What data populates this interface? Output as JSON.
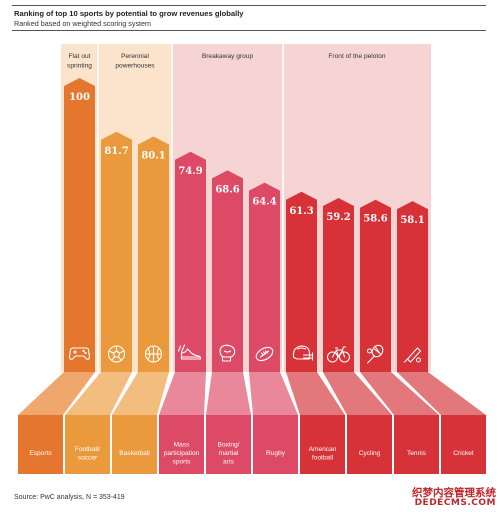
{
  "chart_data": {
    "type": "bar",
    "title": "Ranking of top 10 sports by potential to grow revenues globally",
    "subtitle": "Ranked based on weighted scoring system",
    "source": "PwC analysis, N = 353-419",
    "ylim": [
      0,
      100
    ],
    "groups": [
      {
        "label": "Flat out sprinting",
        "color": "#fbe3cc",
        "start": 0,
        "end": 0
      },
      {
        "label": "Perennial powerhouses",
        "color": "#fbe3cc",
        "start": 1,
        "end": 2
      },
      {
        "label": "Breakaway group",
        "color": "#f7d4d4",
        "start": 3,
        "end": 5
      },
      {
        "label": "Front of the peloton",
        "color": "#f7d4d4",
        "start": 6,
        "end": 9
      }
    ],
    "categories": [
      "Esports",
      "Football/ soccer",
      "Basketball",
      "Mass participation sports",
      "Boxing/ martial arts",
      "Rugby",
      "American football",
      "Cycling",
      "Tennis",
      "Cricket"
    ],
    "values": [
      100,
      81.7,
      80.1,
      74.9,
      68.6,
      64.4,
      61.3,
      59.2,
      58.6,
      58.1
    ],
    "value_labels": [
      "100",
      "81.7",
      "80.1",
      "74.9",
      "68.6",
      "64.4",
      "61.3",
      "59.2",
      "58.6",
      "58.1"
    ],
    "bar_colors": [
      "#e5762d",
      "#ea9a3c",
      "#ea9a3c",
      "#dd4a66",
      "#dd4a66",
      "#dd4a66",
      "#d73238",
      "#d73238",
      "#d73238",
      "#d73238"
    ],
    "base_colors": [
      "#f0a76d",
      "#f3bd7f",
      "#f3bd7f",
      "#e8889a",
      "#e8889a",
      "#e8889a",
      "#e2787c",
      "#e2787c",
      "#e2787c",
      "#e2787c"
    ],
    "icons": [
      "gamepad-icon",
      "soccer-ball-icon",
      "basketball-icon",
      "running-shoe-icon",
      "boxing-glove-icon",
      "rugby-ball-icon",
      "football-helmet-icon",
      "bicycle-icon",
      "tennis-racket-icon",
      "cricket-bat-icon"
    ]
  },
  "watermark": {
    "line1": "织梦内容管理系统",
    "line2": "DEDECMS.COM"
  }
}
